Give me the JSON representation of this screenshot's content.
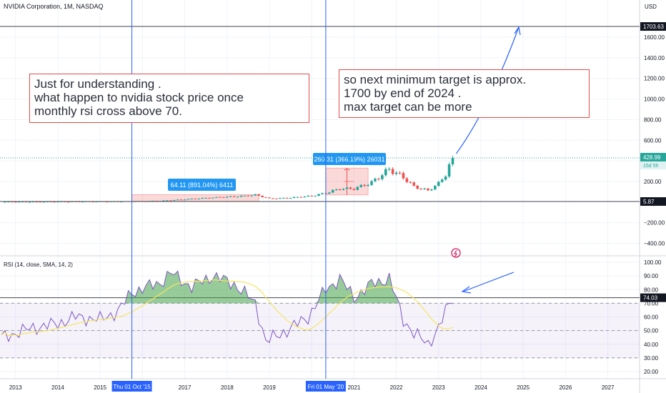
{
  "header": {
    "symbol": "NVIDIA Corporation, 1M, NASDAQ",
    "currency": "USD"
  },
  "price_axis": {
    "labels": [
      "1600.00",
      "1400.00",
      "1200.00",
      "1000.00",
      "800.00",
      "600.00",
      "400.00",
      "200.00",
      "−200.00",
      "−400.00"
    ],
    "target_badge": "1703.63",
    "last_price_badge": "428.99",
    "countdown_badge": "15d 5h",
    "low_badge": "5.87"
  },
  "rsi_axis": {
    "labels": [
      "100.00",
      "90.00",
      "80.00",
      "70.00",
      "60.00",
      "50.00",
      "40.00",
      "30.00",
      "20.00"
    ],
    "badge": "74.03"
  },
  "rsi_title": "RSI (14, close, SMA, 14, 2)",
  "time_axis": {
    "labels": [
      "2013",
      "2014",
      "2015",
      "2017",
      "2018",
      "2019",
      "2021",
      "2022",
      "2023",
      "2024",
      "2025",
      "2026",
      "2027"
    ],
    "cursor_1": "Thu 01 Oct '15",
    "cursor_2": "Fri 01 May '20"
  },
  "annotations": {
    "left_note": [
      "Just for understanding .",
      "what happen to nvidia stock price once",
      "monthly rsi cross above 70."
    ],
    "right_note": [
      "so next  minimum  target is approx.",
      "1700 by end of 2024 .",
      "max target can be more"
    ],
    "range_1_label": "64.11 (891.04%) 6411",
    "range_2_label": "260.31 (366.19%) 26031"
  },
  "colors": {
    "up": "#26a69a",
    "down": "#ef5350",
    "rsi_line": "#7e57c2",
    "rsi_ma": "#f5e663",
    "annotation": "#e04b4b",
    "arrow": "#2962ff",
    "measure": "#2196f3"
  },
  "chart_data": [
    {
      "type": "candlestick",
      "title": "NVIDIA Corporation, 1M, NASDAQ",
      "ylabel": "USD",
      "ylim": [
        -480,
        1800
      ],
      "x_range": [
        "2012-09",
        "2027-10"
      ],
      "series": [
        {
          "name": "NVDA",
          "x": [
            "2012-09",
            "2013-06",
            "2014-06",
            "2015-06",
            "2015-10",
            "2016-06",
            "2017-06",
            "2018-06",
            "2018-09",
            "2019-01",
            "2019-06",
            "2020-01",
            "2020-05",
            "2020-09",
            "2021-01",
            "2021-06",
            "2021-11",
            "2022-03",
            "2022-06",
            "2022-10",
            "2023-01",
            "2023-03",
            "2023-05"
          ],
          "close": [
            3,
            3,
            5,
            6,
            7,
            12,
            38,
            60,
            70,
            35,
            40,
            60,
            88,
            130,
            130,
            190,
            320,
            240,
            150,
            112,
            180,
            270,
            428.99
          ]
        }
      ],
      "target_price": 1703.63,
      "last_price": 428.99,
      "low_line": 5.87
    },
    {
      "type": "line",
      "title": "RSI (14, close, SMA, 14, 2)",
      "ylim": [
        15,
        105
      ],
      "levels": [
        70,
        50,
        30
      ],
      "x": [
        "2012-09",
        "2013-06",
        "2014-01",
        "2014-06",
        "2015-01",
        "2015-06",
        "2015-10",
        "2016-06",
        "2016-09",
        "2017-03",
        "2017-09",
        "2018-03",
        "2018-09",
        "2018-12",
        "2019-06",
        "2019-12",
        "2020-05",
        "2020-09",
        "2021-01",
        "2021-06",
        "2021-11",
        "2022-03",
        "2022-06",
        "2022-10",
        "2023-01",
        "2023-03",
        "2023-05"
      ],
      "series": [
        {
          "name": "RSI",
          "values": [
            45,
            52,
            55,
            60,
            58,
            64,
            78,
            85,
            92,
            82,
            90,
            84,
            70,
            42,
            50,
            60,
            80,
            88,
            74,
            84,
            88,
            58,
            48,
            40,
            52,
            64,
            74
          ]
        }
      ],
      "current": 74.03
    }
  ]
}
